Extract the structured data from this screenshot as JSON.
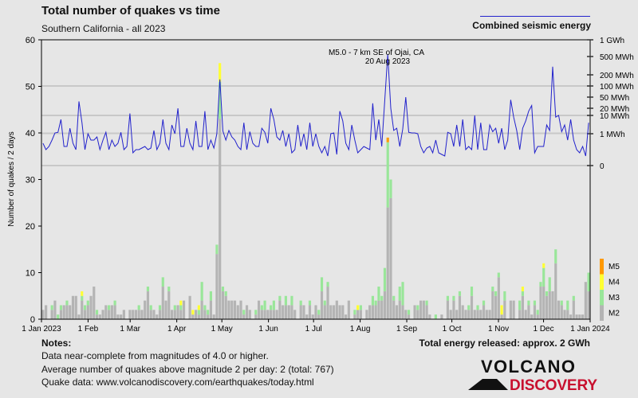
{
  "header": {
    "title": "Total number of quakes vs time",
    "subtitle": "Southern California - all 2023",
    "energy_legend": "Combined seismic energy"
  },
  "chart_data": {
    "type": "bar",
    "title": "Total number of quakes vs time",
    "subtitle": "Southern California - all 2023",
    "ylabel": "Number of quakes / 2 days",
    "ylim": [
      0,
      60
    ],
    "yticks": [
      "0",
      "10",
      "20",
      "30",
      "40",
      "50",
      "60"
    ],
    "xticks": [
      "1 Jan 2023",
      "1 Feb",
      "1 Mar",
      "1 Apr",
      "1 May",
      "1 Jun",
      "1 Jul",
      "1 Aug",
      "1 Sep",
      "1 Oct",
      "1 Nov",
      "1 Dec",
      "1 Jan 2024"
    ],
    "bin": "2 days",
    "colors": {
      "M2": "#b4b4b4",
      "M3": "#99e699",
      "M4": "#ffff33",
      "M5": "#ff9900",
      "energy": "#2222cc"
    },
    "magnitude_legend": [
      "M5",
      "M4",
      "M3",
      "M2"
    ],
    "total": [
      2,
      3,
      0,
      3,
      4,
      1,
      3,
      3,
      4,
      3,
      5,
      5,
      1,
      6,
      3,
      4,
      5,
      7,
      2,
      1,
      2,
      3,
      3,
      3,
      4,
      1,
      1,
      2,
      0,
      2,
      2,
      2,
      3,
      2,
      4,
      7,
      3,
      2,
      1,
      3,
      9,
      4,
      7,
      2,
      3,
      3,
      4,
      4,
      0,
      5,
      2,
      2,
      3,
      8,
      3,
      2,
      6,
      1,
      16,
      55,
      7,
      6,
      4,
      4,
      4,
      3,
      4,
      2,
      3,
      2,
      0,
      2,
      4,
      3,
      4,
      2,
      3,
      4,
      2,
      5,
      3,
      5,
      3,
      5,
      2,
      0,
      4,
      3,
      1,
      4,
      1,
      3,
      2,
      9,
      4,
      8,
      3,
      3,
      4,
      3,
      3,
      1,
      4,
      0,
      2,
      3,
      3,
      0,
      2,
      3,
      5,
      4,
      7,
      5,
      11,
      39,
      30,
      5,
      3,
      7,
      8,
      2,
      2,
      0,
      3,
      3,
      4,
      4,
      4,
      1,
      0,
      1,
      0,
      1,
      0,
      5,
      2,
      5,
      2,
      6,
      3,
      2,
      3,
      7,
      2,
      3,
      2,
      4,
      2,
      2,
      7,
      6,
      10,
      3,
      6,
      0,
      4,
      4,
      0,
      4,
      7,
      2,
      4,
      1,
      4,
      2,
      8,
      12,
      6,
      9,
      6,
      15,
      4,
      4,
      2,
      4,
      1,
      5,
      1,
      1,
      1,
      8,
      10
    ],
    "m3": [
      0,
      0,
      0,
      1,
      0,
      1,
      1,
      0,
      1,
      0,
      0,
      0,
      0,
      1,
      1,
      1,
      0,
      0,
      1,
      0,
      0,
      0,
      1,
      0,
      1,
      0,
      0,
      0,
      0,
      0,
      0,
      0,
      1,
      0,
      0,
      1,
      1,
      0,
      0,
      1,
      2,
      0,
      1,
      0,
      1,
      0,
      1,
      0,
      0,
      0,
      0,
      0,
      1,
      4,
      1,
      1,
      2,
      0,
      2,
      8,
      1,
      1,
      0,
      0,
      0,
      0,
      0,
      1,
      0,
      0,
      0,
      1,
      0,
      1,
      2,
      0,
      1,
      2,
      0,
      1,
      0,
      2,
      0,
      2,
      0,
      0,
      1,
      0,
      0,
      1,
      0,
      0,
      1,
      3,
      1,
      1,
      0,
      0,
      0,
      0,
      0,
      0,
      0,
      0,
      1,
      0,
      1,
      0,
      0,
      0,
      2,
      1,
      3,
      1,
      5,
      14,
      4,
      1,
      0,
      3,
      5,
      0,
      1,
      0,
      0,
      1,
      0,
      0,
      1,
      0,
      0,
      1,
      0,
      0,
      0,
      1,
      0,
      1,
      0,
      1,
      0,
      0,
      1,
      2,
      0,
      1,
      0,
      1,
      0,
      0,
      1,
      1,
      1,
      0,
      2,
      0,
      0,
      0,
      0,
      2,
      1,
      0,
      1,
      0,
      1,
      1,
      1,
      4,
      1,
      3,
      0,
      3,
      0,
      1,
      0,
      2,
      0,
      1,
      0,
      0,
      0,
      0,
      4
    ],
    "m4": {
      "13": 1,
      "46": 1,
      "50": 1,
      "52": 1,
      "59": 4,
      "105": 1,
      "153": 2,
      "160": 1,
      "167": 1
    },
    "m5": {
      "115": 1
    },
    "energy": {
      "name": "Combined seismic energy",
      "unit": "MWh",
      "ticks": [
        "0",
        "1 MWh",
        "10 MWh",
        "20 MWh",
        "50 MWh",
        "100 MWh",
        "200 MWh",
        "500 MWh",
        "1 GWh"
      ],
      "values": [
        0.7,
        0.5,
        0.6,
        0.8,
        1.1,
        1.2,
        6,
        0.6,
        0.6,
        2,
        0.7,
        0.5,
        35,
        4,
        0.5,
        1.0,
        0.8,
        0.8,
        0.9,
        0.5,
        0.8,
        1.2,
        0.5,
        0.8,
        0.6,
        0.7,
        1.2,
        0.5,
        0.6,
        12,
        0.4,
        0.5,
        0.5,
        0.55,
        0.6,
        0.5,
        0.55,
        1.5,
        0.5,
        0.7,
        6,
        0.7,
        0.5,
        3,
        1.0,
        20,
        0.6,
        0.6,
        2,
        0.7,
        0.5,
        5,
        0.6,
        0.6,
        15,
        0.5,
        0.8,
        0.55,
        1.0,
        150,
        1.4,
        0.8,
        1.5,
        0.9,
        0.8,
        0.6,
        0.5,
        4,
        0.5,
        1.3,
        0.7,
        0.6,
        0.6,
        2,
        1.2,
        0.7,
        20,
        6,
        0.9,
        0.8,
        1.5,
        0.6,
        1.0,
        0.4,
        0.5,
        3,
        0.6,
        1.0,
        0.5,
        4,
        0.6,
        1.0,
        0.6,
        0.4,
        0.6,
        0.3,
        1.0,
        1.1,
        0.35,
        15,
        5,
        0.7,
        0.5,
        3,
        0.8,
        0.4,
        0.5,
        0.6,
        0.55,
        0.5,
        30,
        0.8,
        6,
        0.6,
        40,
        550,
        20,
        1.5,
        2,
        0.6,
        1.8,
        50,
        1.2,
        1.1,
        1.1,
        1.0,
        0.6,
        0.4,
        0.55,
        0.6,
        0.4,
        0.8,
        0.4,
        0.35,
        0.3,
        1.2,
        1.0,
        0.6,
        3,
        0.6,
        6,
        0.5,
        0.6,
        0.5,
        10,
        0.5,
        4,
        0.5,
        0.5,
        3,
        1.3,
        2,
        0.7,
        2,
        0.5,
        0.8,
        40,
        8,
        1.5,
        0.5,
        2,
        5,
        15,
        25,
        0.4,
        0.6,
        0.6,
        0.6,
        3,
        1.5,
        300,
        8,
        10,
        1.3,
        3,
        0.8,
        6,
        0.8,
        0.5,
        0.4,
        0.6,
        0.3,
        4
      ]
    },
    "annotation": {
      "line1": "M5.0 - 7 km SE of Ojai, CA",
      "line2": "20 Aug 2023"
    }
  },
  "notes": {
    "heading": "Notes:",
    "lines": [
      "Data near-complete from magnitudes of 4.0 or higher.",
      "Average number of quakes above magnitude 2 per day: 2 (total: 767)",
      "Quake data: www.volcanodiscovery.com/earthquakes/today.html"
    ]
  },
  "total_energy": "Total energy released: approx. 2 GWh",
  "logo": {
    "line1": "VOLCANO",
    "line2": "DISCOVERY"
  }
}
